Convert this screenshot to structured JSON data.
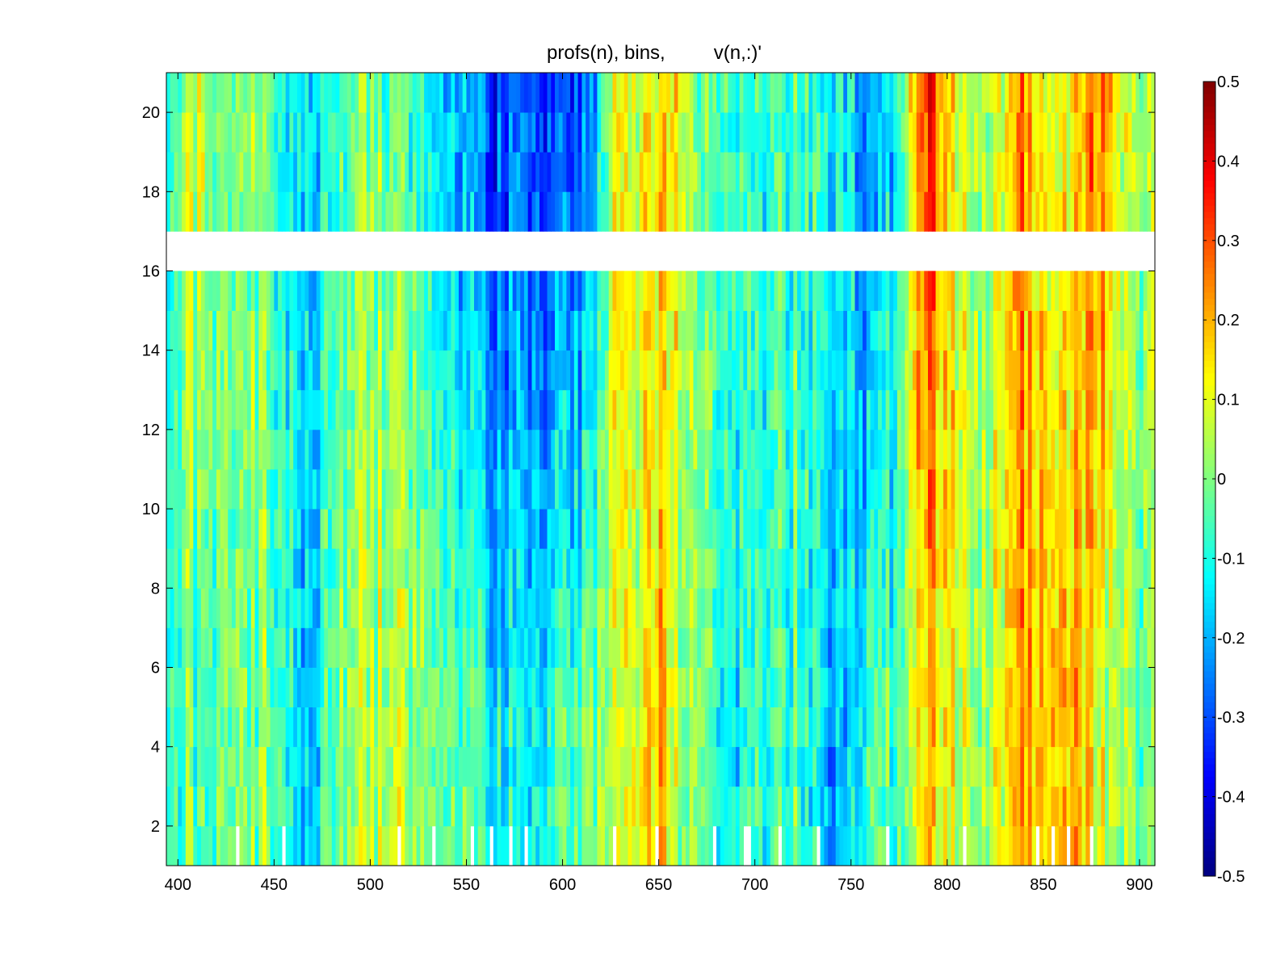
{
  "chart_data": {
    "type": "heatmap",
    "title": "profs(n), bins,         v(n,:)'",
    "xlabel": "",
    "ylabel": "",
    "xlim": [
      394,
      908
    ],
    "ylim": [
      1,
      21
    ],
    "x_ticks": [
      "400",
      "450",
      "500",
      "550",
      "600",
      "650",
      "700",
      "750",
      "800",
      "850",
      "900"
    ],
    "y_ticks": [
      "2",
      "4",
      "6",
      "8",
      "10",
      "12",
      "14",
      "16",
      "18",
      "20"
    ],
    "rows": [
      1,
      2,
      3,
      4,
      5,
      6,
      7,
      8,
      9,
      10,
      11,
      12,
      13,
      14,
      15,
      16,
      17,
      18,
      19,
      20
    ],
    "missing_rows": [
      16
    ],
    "colormap": "jet",
    "clim": [
      -0.5,
      0.5
    ],
    "colorbar_ticks": [
      "0.5",
      "0.4",
      "0.3",
      "0.2",
      "0.1",
      "0",
      "-0.1",
      "-0.2",
      "-0.3",
      "-0.4",
      "-0.5"
    ],
    "bin_profile": {
      "x": [
        394,
        400,
        405,
        410,
        420,
        430,
        440,
        455,
        465,
        470,
        480,
        490,
        500,
        520,
        540,
        560,
        580,
        600,
        615,
        625,
        640,
        650,
        655,
        660,
        670,
        680,
        690,
        700,
        720,
        740,
        750,
        760,
        770,
        780,
        785,
        790,
        800,
        810,
        820,
        830,
        837,
        845,
        855,
        865,
        875,
        882,
        890,
        900,
        908
      ],
      "lower_rows_mean": [
        -0.1,
        -0.05,
        0.05,
        -0.1,
        0.0,
        -0.05,
        0.0,
        -0.05,
        -0.2,
        -0.15,
        0.0,
        0.05,
        0.05,
        0.05,
        0.0,
        -0.1,
        -0.15,
        -0.05,
        0.0,
        0.05,
        0.1,
        0.2,
        0.15,
        -0.05,
        0.0,
        -0.1,
        -0.15,
        -0.1,
        -0.05,
        -0.2,
        -0.15,
        -0.1,
        -0.05,
        0.05,
        0.15,
        0.15,
        0.1,
        0.05,
        0.05,
        0.1,
        0.25,
        0.15,
        0.25,
        0.2,
        0.1,
        0.05,
        0.0,
        -0.05,
        -0.05
      ],
      "upper_rows_mean": [
        -0.1,
        0.0,
        0.1,
        0.05,
        0.0,
        -0.05,
        0.0,
        -0.1,
        -0.15,
        -0.15,
        -0.05,
        0.0,
        0.0,
        -0.05,
        -0.15,
        -0.3,
        -0.3,
        -0.3,
        -0.25,
        0.1,
        0.1,
        0.15,
        0.2,
        0.05,
        -0.05,
        -0.05,
        -0.1,
        -0.1,
        -0.05,
        -0.1,
        -0.15,
        -0.3,
        -0.15,
        0.15,
        0.3,
        0.3,
        0.15,
        0.05,
        0.05,
        0.1,
        0.3,
        0.1,
        0.15,
        0.15,
        0.25,
        0.2,
        0.05,
        0.0,
        0.05
      ]
    },
    "pattern_seed": 20240519
  }
}
